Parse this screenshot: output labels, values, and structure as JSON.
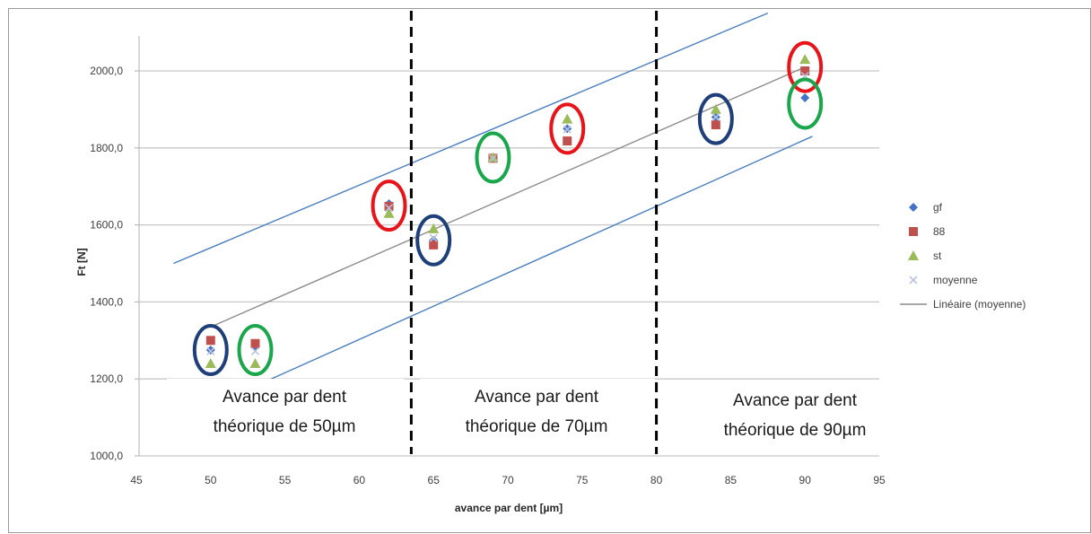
{
  "chart_data": {
    "type": "scatter",
    "xlabel": "avance par dent [µm]",
    "ylabel": "Ft [N]",
    "xlim": [
      45,
      95
    ],
    "ylim": [
      1000,
      2150
    ],
    "x_ticks": [
      "45",
      "50",
      "55",
      "60",
      "65",
      "70",
      "75",
      "80",
      "85",
      "90",
      "95"
    ],
    "x_tick_values": [
      45,
      50,
      55,
      60,
      65,
      70,
      75,
      80,
      85,
      90,
      95
    ],
    "y_ticks": [
      "1000,0",
      "1200,0",
      "1400,0",
      "1600,0",
      "1800,0",
      "2000,0"
    ],
    "y_tick_values": [
      1000,
      1200,
      1400,
      1600,
      1800,
      2000
    ],
    "grid": "horizontal",
    "legend_position": "right",
    "series": [
      {
        "name": "gf",
        "marker": "diamond",
        "color": "#4472C4",
        "x": [
          50,
          53,
          62,
          65,
          69,
          74,
          84,
          90
        ],
        "y": [
          1275,
          1285,
          1655,
          1560,
          1772,
          1850,
          1880,
          1930
        ]
      },
      {
        "name": "88",
        "marker": "square",
        "color": "#C0504D",
        "x": [
          50,
          53,
          62,
          65,
          69,
          74,
          84,
          90
        ],
        "y": [
          1300,
          1292,
          1648,
          1548,
          1773,
          1818,
          1860,
          2000
        ]
      },
      {
        "name": "st",
        "marker": "triangle",
        "color": "#9BBB59",
        "x": [
          50,
          53,
          62,
          65,
          69,
          74,
          84,
          90
        ],
        "y": [
          1240,
          1240,
          1630,
          1590,
          1775,
          1875,
          1900,
          2030
        ]
      },
      {
        "name": "moyenne",
        "marker": "x",
        "color": "#B9C3DE",
        "x": [
          50,
          53,
          62,
          65,
          69,
          74,
          84,
          90
        ],
        "y": [
          1272,
          1272,
          1644,
          1566,
          1773,
          1848,
          1880,
          1987
        ]
      }
    ],
    "trendline": {
      "name": "Linéaire (moyenne)",
      "color": "#8c8c8c",
      "x": [
        50,
        90
      ],
      "y": [
        1335,
        2010
      ]
    },
    "bounds": {
      "color": "#4a7ec0",
      "upper": {
        "x": [
          47.5,
          87.5
        ],
        "y": [
          1500,
          2150
        ]
      },
      "lower": {
        "x": [
          53.5,
          90.5
        ],
        "y": [
          1190,
          1830
        ]
      }
    },
    "dividers": [
      {
        "x": 63.5
      },
      {
        "x": 80.0
      }
    ],
    "regions": [
      {
        "line1": "Avance par dent",
        "line2": "théorique de 50µm"
      },
      {
        "line1": "Avance par dent",
        "line2": "théorique de 70µm"
      },
      {
        "line1": "Avance par dent",
        "line2": "théorique de 90µm"
      }
    ],
    "highlight_circles": [
      {
        "x": 50,
        "y": 1275,
        "color": "#1f3f7a"
      },
      {
        "x": 53,
        "y": 1275,
        "color": "#1aa64a"
      },
      {
        "x": 62,
        "y": 1650,
        "color": "#e8141a"
      },
      {
        "x": 65,
        "y": 1560,
        "color": "#1f3f7a"
      },
      {
        "x": 69,
        "y": 1775,
        "color": "#1aa64a"
      },
      {
        "x": 74,
        "y": 1850,
        "color": "#e8141a"
      },
      {
        "x": 84,
        "y": 1875,
        "color": "#1f3f7a"
      },
      {
        "x": 90,
        "y": 2010,
        "color": "#e8141a"
      },
      {
        "x": 90,
        "y": 1915,
        "color": "#1aa64a"
      }
    ]
  }
}
